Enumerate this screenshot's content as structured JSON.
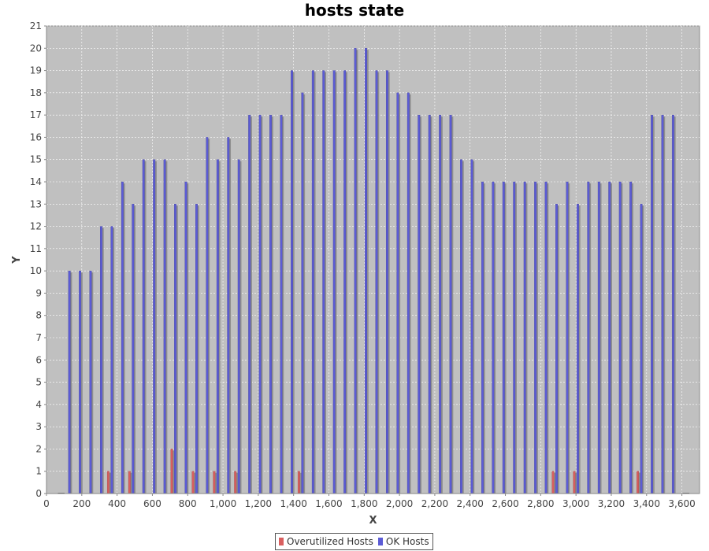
{
  "chart_data": {
    "type": "bar",
    "title": "hosts state",
    "xlabel": "X",
    "ylabel": "Y",
    "xlim": [
      0,
      3700
    ],
    "ylim": [
      0,
      21
    ],
    "x_ticks": [
      0,
      200,
      400,
      600,
      800,
      1000,
      1200,
      1400,
      1600,
      1800,
      2000,
      2200,
      2400,
      2600,
      2800,
      3000,
      3200,
      3400,
      3600
    ],
    "x_tick_labels": [
      "0",
      "200",
      "400",
      "600",
      "800",
      "1,000",
      "1,200",
      "1,400",
      "1,600",
      "1,800",
      "2,000",
      "2,200",
      "2,400",
      "2,600",
      "2,800",
      "3,000",
      "3,200",
      "3,400",
      "3,600"
    ],
    "y_ticks": [
      0,
      1,
      2,
      3,
      4,
      5,
      6,
      7,
      8,
      9,
      10,
      11,
      12,
      13,
      14,
      15,
      16,
      17,
      18,
      19,
      20,
      21
    ],
    "grid": true,
    "legend_position": "bottom-center",
    "x": [
      60,
      120,
      180,
      240,
      300,
      360,
      420,
      480,
      540,
      600,
      660,
      720,
      780,
      840,
      900,
      960,
      1020,
      1080,
      1140,
      1200,
      1260,
      1320,
      1380,
      1440,
      1500,
      1560,
      1620,
      1680,
      1740,
      1800,
      1860,
      1920,
      1980,
      2040,
      2100,
      2160,
      2220,
      2280,
      2340,
      2400,
      2460,
      2520,
      2580,
      2640,
      2700,
      2760,
      2820,
      2880,
      2940,
      3000,
      3060,
      3120,
      3180,
      3240,
      3300,
      3360,
      3420,
      3480,
      3540,
      3600
    ],
    "series": [
      {
        "name": "Overutilized Hosts",
        "color": "#d95f5f",
        "values": [
          0,
          0,
          0,
          0,
          0,
          1,
          0,
          1,
          0,
          0,
          0,
          2,
          0,
          1,
          0,
          1,
          0,
          1,
          0,
          0,
          0,
          0,
          0,
          1,
          0,
          0,
          0,
          0,
          0,
          0,
          0,
          0,
          0,
          0,
          0,
          0,
          0,
          0,
          0,
          0,
          0,
          0,
          0,
          0,
          0,
          0,
          0,
          1,
          0,
          1,
          0,
          0,
          0,
          0,
          0,
          1,
          0,
          0,
          0,
          0
        ]
      },
      {
        "name": "OK Hosts",
        "color": "#5c5cd6",
        "values": [
          0,
          10,
          10,
          10,
          12,
          12,
          14,
          13,
          15,
          15,
          15,
          13,
          14,
          13,
          16,
          15,
          16,
          15,
          17,
          17,
          17,
          17,
          19,
          18,
          19,
          19,
          19,
          19,
          20,
          20,
          19,
          19,
          18,
          18,
          17,
          17,
          17,
          17,
          15,
          15,
          14,
          14,
          14,
          14,
          14,
          14,
          14,
          13,
          14,
          13,
          14,
          14,
          14,
          14,
          14,
          13,
          17,
          17,
          17,
          0
        ]
      }
    ]
  }
}
